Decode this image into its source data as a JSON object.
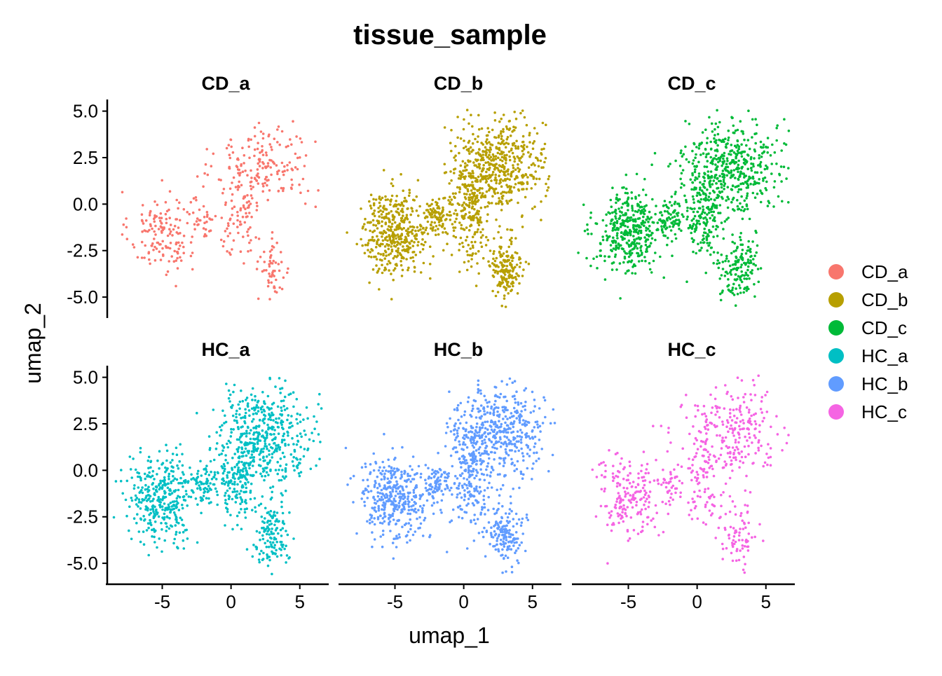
{
  "chart_data": {
    "type": "scatter",
    "title": "tissue_sample",
    "xlabel": "umap_1",
    "ylabel": "umap_2",
    "xlim": [
      -9,
      7
    ],
    "ylim": [
      -5.9,
      5.4
    ],
    "x_ticks": [
      -5,
      0,
      5
    ],
    "y_ticks": [
      5.0,
      2.5,
      0.0,
      -2.5,
      -5.0
    ],
    "x_tick_labels": [
      "-5",
      "0",
      "5"
    ],
    "y_tick_labels": [
      "5.0",
      "2.5",
      "0.0",
      "-2.5",
      "-5.0"
    ],
    "grid": false,
    "legend_position": "right",
    "facets": [
      {
        "name": "CD_a",
        "color": "#F8766D",
        "density": 0.35
      },
      {
        "name": "CD_b",
        "color": "#B79F00",
        "density": 1.0
      },
      {
        "name": "CD_c",
        "color": "#00BA38",
        "density": 0.9
      },
      {
        "name": "HC_a",
        "color": "#00BFC4",
        "density": 0.85
      },
      {
        "name": "HC_b",
        "color": "#619CFF",
        "density": 0.9
      },
      {
        "name": "HC_c",
        "color": "#F564E3",
        "density": 0.45
      }
    ],
    "cluster_regions": [
      {
        "name": "left-lobe",
        "cx": -5.0,
        "cy": -1.5,
        "rx": 2.4,
        "ry": 2.2
      },
      {
        "name": "upper-right",
        "cx": 2.5,
        "cy": 2.0,
        "rx": 3.5,
        "ry": 2.5
      },
      {
        "name": "central-column",
        "cx": 0.5,
        "cy": -0.5,
        "rx": 1.5,
        "ry": 2.5
      },
      {
        "name": "lower-right-tail",
        "cx": 3.0,
        "cy": -3.5,
        "rx": 1.3,
        "ry": 1.8
      },
      {
        "name": "mid-bridge",
        "cx": -2.0,
        "cy": -0.8,
        "rx": 1.0,
        "ry": 1.0
      }
    ]
  },
  "legend": {
    "items": [
      {
        "label": "CD_a",
        "color": "#F8766D"
      },
      {
        "label": "CD_b",
        "color": "#B79F00"
      },
      {
        "label": "CD_c",
        "color": "#00BA38"
      },
      {
        "label": "HC_a",
        "color": "#00BFC4"
      },
      {
        "label": "HC_b",
        "color": "#619CFF"
      },
      {
        "label": "HC_c",
        "color": "#F564E3"
      }
    ]
  }
}
